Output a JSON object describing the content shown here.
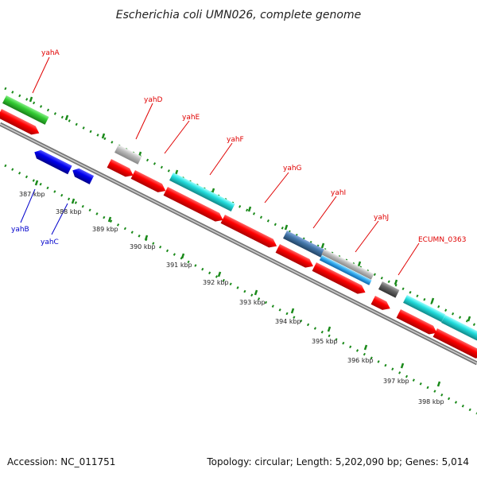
{
  "title": "Escherichia coli UMN026, complete genome",
  "footer": {
    "accession": "Accession: NC_011751",
    "topology": "Topology: circular; Length: 5,202,090 bp; Genes: 5,014"
  },
  "kbp_ticks": [
    {
      "label": "387 kbp"
    },
    {
      "label": "388 kbp"
    },
    {
      "label": "389 kbp"
    },
    {
      "label": "390 kbp"
    },
    {
      "label": "391 kbp"
    },
    {
      "label": "392 kbp"
    },
    {
      "label": "393 kbp"
    },
    {
      "label": "394 kbp"
    },
    {
      "label": "395 kbp"
    },
    {
      "label": "396 kbp"
    },
    {
      "label": "397 kbp"
    },
    {
      "label": "398 kbp"
    }
  ],
  "gene_labels": [
    {
      "name": "yahA",
      "color": "#e00000"
    },
    {
      "name": "yahD",
      "color": "#e00000"
    },
    {
      "name": "yahE",
      "color": "#e00000"
    },
    {
      "name": "yahF",
      "color": "#e00000"
    },
    {
      "name": "yahG",
      "color": "#e00000"
    },
    {
      "name": "yahI",
      "color": "#e00000"
    },
    {
      "name": "yahJ",
      "color": "#e00000"
    },
    {
      "name": "ECUMN_0363",
      "color": "#e00000"
    },
    {
      "name": "yahB",
      "color": "#0000cc"
    },
    {
      "name": "yahC",
      "color": "#0000cc"
    }
  ],
  "colors": {
    "cds": "#ff0000",
    "reverse_cds": "#0000ee",
    "backbone": "#888888",
    "tick": "#1a8a1a",
    "green_feature": "#33cc33",
    "cyan_feature": "#22dddd",
    "steel_feature": "#4477aa",
    "light_blue_feature": "#33aaee",
    "grey_feature": "#bbbbbb",
    "dark_grey_feature": "#666666"
  }
}
